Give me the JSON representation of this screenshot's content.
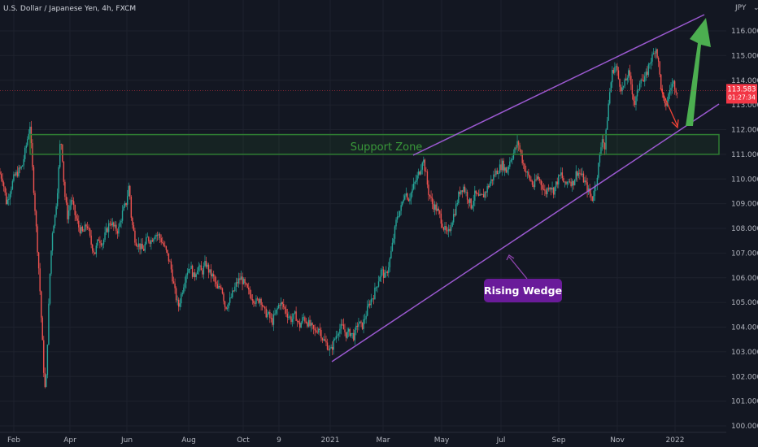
{
  "symbol": {
    "title": "U.S. Dollar / Japanese Yen, 4h, FXCM"
  },
  "colors": {
    "background": "#131722",
    "grid": "#1f2430",
    "axis_text": "#b2b5be",
    "up": "#26a69a",
    "down": "#ef5350",
    "wedge": "#9b59d0",
    "support": "#2e7d32",
    "support_text": "#3a9a3a",
    "price_label_bg": "#f23645",
    "callout_bg": "#6a1b9a",
    "arrow_green": "#4caf50",
    "arrow_red": "#f44336"
  },
  "chart_data": {
    "type": "candlestick",
    "title": "U.S. Dollar / Japanese Yen, 4h, FXCM",
    "currency_label": "JPY",
    "ylim": [
      99.6,
      117.0
    ],
    "y_ticks": [
      "100.000",
      "101.000",
      "102.000",
      "103.000",
      "104.000",
      "105.000",
      "106.000",
      "107.000",
      "108.000",
      "109.000",
      "110.000",
      "111.000",
      "112.000",
      "113.000",
      "114.000",
      "115.000",
      "116.000"
    ],
    "x_ticks": [
      "Feb",
      "Apr",
      "Jun",
      "Aug",
      "Oct",
      "9",
      "2021",
      "Mar",
      "May",
      "Jul",
      "Sep",
      "Nov",
      "2022"
    ],
    "last_price": "113.583",
    "countdown": "01:27:34",
    "support_zone": {
      "label": "Support Zone",
      "low": 111.0,
      "high": 111.8
    },
    "rising_wedge_label": "Rising Wedge",
    "price_path": [
      [
        0.0,
        110.3
      ],
      [
        0.5,
        110.0
      ],
      [
        1.0,
        109.0
      ],
      [
        1.5,
        109.6
      ],
      [
        2.0,
        110.1
      ],
      [
        2.5,
        110.3
      ],
      [
        3.0,
        110.5
      ],
      [
        3.6,
        111.5
      ],
      [
        4.0,
        112.2
      ],
      [
        4.3,
        110.5
      ],
      [
        4.8,
        108.0
      ],
      [
        5.2,
        106.0
      ],
      [
        5.5,
        104.0
      ],
      [
        5.8,
        102.0
      ],
      [
        6.0,
        101.2
      ],
      [
        6.3,
        104.0
      ],
      [
        6.6,
        106.5
      ],
      [
        6.9,
        108.0
      ],
      [
        7.2,
        108.5
      ],
      [
        7.5,
        109.5
      ],
      [
        7.7,
        110.5
      ],
      [
        7.9,
        111.7
      ],
      [
        8.1,
        111.2
      ],
      [
        8.4,
        109.5
      ],
      [
        8.8,
        108.5
      ],
      [
        9.3,
        109.2
      ],
      [
        9.8,
        108.5
      ],
      [
        10.3,
        108.0
      ],
      [
        10.8,
        107.8
      ],
      [
        11.3,
        108.2
      ],
      [
        11.8,
        107.4
      ],
      [
        12.3,
        107.0
      ],
      [
        12.8,
        107.6
      ],
      [
        13.3,
        107.4
      ],
      [
        13.8,
        107.9
      ],
      [
        14.3,
        108.3
      ],
      [
        14.8,
        108.0
      ],
      [
        15.3,
        107.9
      ],
      [
        15.8,
        108.6
      ],
      [
        16.3,
        109.0
      ],
      [
        16.7,
        109.8
      ],
      [
        17.0,
        108.3
      ],
      [
        17.5,
        107.5
      ],
      [
        18.0,
        107.3
      ],
      [
        18.5,
        107.1
      ],
      [
        19.0,
        107.6
      ],
      [
        19.5,
        107.5
      ],
      [
        20.0,
        107.8
      ],
      [
        20.5,
        107.7
      ],
      [
        21.0,
        107.4
      ],
      [
        21.5,
        107.0
      ],
      [
        22.0,
        106.5
      ],
      [
        22.5,
        105.5
      ],
      [
        23.0,
        104.8
      ],
      [
        23.5,
        105.5
      ],
      [
        24.0,
        106.2
      ],
      [
        24.5,
        106.5
      ],
      [
        25.0,
        106.0
      ],
      [
        25.5,
        106.5
      ],
      [
        26.0,
        106.2
      ],
      [
        26.5,
        106.6
      ],
      [
        27.0,
        106.2
      ],
      [
        27.5,
        106.0
      ],
      [
        28.0,
        105.5
      ],
      [
        28.5,
        105.7
      ],
      [
        29.0,
        104.8
      ],
      [
        29.5,
        105.0
      ],
      [
        30.0,
        105.4
      ],
      [
        30.5,
        105.8
      ],
      [
        31.0,
        106.0
      ],
      [
        31.5,
        105.7
      ],
      [
        32.0,
        105.4
      ],
      [
        32.5,
        105.2
      ],
      [
        33.0,
        105.0
      ],
      [
        33.5,
        105.2
      ],
      [
        34.0,
        104.6
      ],
      [
        34.5,
        104.5
      ],
      [
        35.0,
        104.2
      ],
      [
        35.5,
        104.6
      ],
      [
        36.0,
        105.0
      ],
      [
        36.5,
        104.8
      ],
      [
        37.0,
        104.5
      ],
      [
        37.5,
        104.3
      ],
      [
        38.0,
        104.5
      ],
      [
        38.5,
        104.0
      ],
      [
        39.0,
        104.4
      ],
      [
        39.5,
        104.2
      ],
      [
        40.0,
        104.0
      ],
      [
        40.5,
        103.8
      ],
      [
        41.0,
        104.0
      ],
      [
        41.5,
        103.5
      ],
      [
        42.0,
        103.3
      ],
      [
        42.5,
        103.0
      ],
      [
        43.0,
        103.5
      ],
      [
        43.5,
        103.9
      ],
      [
        44.0,
        104.0
      ],
      [
        44.5,
        103.7
      ],
      [
        45.0,
        103.8
      ],
      [
        45.5,
        103.6
      ],
      [
        46.0,
        104.2
      ],
      [
        46.5,
        104.0
      ],
      [
        47.0,
        104.5
      ],
      [
        47.5,
        105.0
      ],
      [
        48.0,
        105.3
      ],
      [
        48.5,
        105.8
      ],
      [
        49.0,
        106.3
      ],
      [
        49.5,
        106.0
      ],
      [
        50.0,
        106.6
      ],
      [
        50.5,
        107.5
      ],
      [
        51.0,
        108.5
      ],
      [
        51.5,
        108.8
      ],
      [
        52.0,
        109.5
      ],
      [
        52.5,
        109.2
      ],
      [
        53.0,
        109.6
      ],
      [
        53.5,
        110.0
      ],
      [
        54.0,
        110.4
      ],
      [
        54.3,
        110.9
      ],
      [
        54.7,
        110.2
      ],
      [
        55.0,
        109.5
      ],
      [
        55.5,
        109.0
      ],
      [
        56.0,
        108.8
      ],
      [
        56.5,
        108.5
      ],
      [
        57.0,
        108.0
      ],
      [
        57.5,
        107.7
      ],
      [
        58.0,
        108.3
      ],
      [
        58.5,
        108.8
      ],
      [
        59.0,
        109.5
      ],
      [
        59.5,
        109.7
      ],
      [
        60.0,
        109.3
      ],
      [
        60.5,
        108.9
      ],
      [
        61.0,
        109.4
      ],
      [
        61.5,
        109.2
      ],
      [
        62.0,
        109.3
      ],
      [
        62.5,
        109.6
      ],
      [
        63.0,
        109.9
      ],
      [
        63.5,
        110.2
      ],
      [
        64.0,
        110.4
      ],
      [
        64.5,
        110.6
      ],
      [
        65.0,
        110.3
      ],
      [
        65.5,
        110.8
      ],
      [
        66.0,
        111.1
      ],
      [
        66.5,
        111.5
      ],
      [
        67.0,
        110.8
      ],
      [
        67.5,
        110.3
      ],
      [
        68.0,
        110.0
      ],
      [
        68.5,
        109.7
      ],
      [
        69.0,
        110.1
      ],
      [
        69.5,
        109.8
      ],
      [
        70.0,
        109.4
      ],
      [
        70.5,
        109.8
      ],
      [
        71.0,
        109.5
      ],
      [
        71.5,
        109.9
      ],
      [
        72.0,
        110.2
      ],
      [
        72.5,
        109.7
      ],
      [
        73.0,
        110.0
      ],
      [
        73.5,
        109.8
      ],
      [
        74.0,
        110.3
      ],
      [
        74.5,
        110.2
      ],
      [
        75.0,
        109.9
      ],
      [
        75.5,
        109.5
      ],
      [
        76.0,
        109.2
      ],
      [
        76.5,
        109.9
      ],
      [
        77.0,
        111.0
      ],
      [
        77.3,
        111.8
      ],
      [
        77.6,
        111.2
      ],
      [
        78.0,
        112.8
      ],
      [
        78.3,
        113.7
      ],
      [
        78.6,
        114.4
      ],
      [
        79.0,
        114.6
      ],
      [
        79.4,
        114.0
      ],
      [
        79.8,
        113.6
      ],
      [
        80.2,
        113.9
      ],
      [
        80.6,
        114.3
      ],
      [
        81.0,
        113.8
      ],
      [
        81.4,
        113.0
      ],
      [
        81.8,
        113.5
      ],
      [
        82.2,
        114.2
      ],
      [
        82.6,
        113.9
      ],
      [
        83.0,
        114.3
      ],
      [
        83.4,
        114.8
      ],
      [
        83.8,
        115.0
      ],
      [
        84.1,
        115.4
      ],
      [
        84.4,
        114.9
      ],
      [
        84.7,
        114.0
      ],
      [
        85.0,
        113.3
      ],
      [
        85.3,
        112.9
      ],
      [
        85.6,
        113.2
      ],
      [
        86.0,
        113.7
      ],
      [
        86.4,
        113.9
      ],
      [
        86.8,
        113.6
      ]
    ],
    "x_span": [
      0,
      93
    ]
  },
  "annotations": {
    "support_zone": "Support Zone",
    "rising_wedge": "Rising Wedge"
  }
}
